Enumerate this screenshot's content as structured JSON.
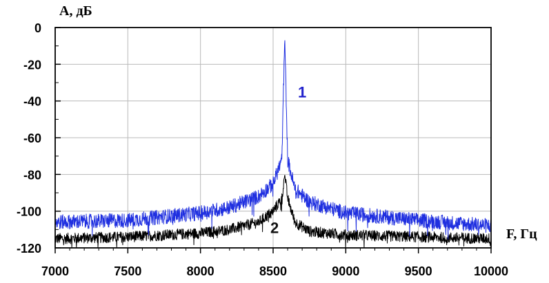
{
  "chart_data": {
    "type": "line",
    "xlabel": "F, Гц",
    "ylabel": "A, дБ",
    "xlim": [
      7000,
      10000
    ],
    "ylim": [
      -120,
      0
    ],
    "x_ticks": [
      7000,
      7500,
      8000,
      8500,
      9000,
      9500,
      10000
    ],
    "y_ticks": [
      0,
      -20,
      -40,
      -60,
      -80,
      -100,
      -120
    ],
    "x_tick_labels": [
      "7000",
      "7500",
      "8000",
      "8500",
      "9000",
      "9500",
      "10000"
    ],
    "y_tick_labels": [
      "0",
      "-20",
      "-40",
      "-60",
      "-80",
      "-100",
      "-120"
    ],
    "grid": true,
    "annotations": [
      {
        "text": "1",
        "x": 8700,
        "y": -38,
        "color": "#2222cc"
      },
      {
        "text": "2",
        "x": 8510,
        "y": -112,
        "color": "#111111"
      }
    ],
    "series": [
      {
        "label": "1",
        "color": "#1f2fe0",
        "x": [
          7000,
          7500,
          8000,
          8200,
          8400,
          8500,
          8560,
          8580,
          8600,
          8650,
          8750,
          9000,
          9500,
          10000
        ],
        "y": [
          -106,
          -105,
          -101,
          -98,
          -92,
          -85,
          -72,
          -5,
          -72,
          -88,
          -95,
          -101,
          -105,
          -108
        ],
        "noise": 4
      },
      {
        "label": "2",
        "color": "#000000",
        "x": [
          7000,
          7500,
          8000,
          8200,
          8400,
          8500,
          8560,
          8580,
          8600,
          8650,
          8750,
          9000,
          9500,
          10000
        ],
        "y": [
          -115,
          -114,
          -112,
          -110,
          -106,
          -100,
          -93,
          -80,
          -93,
          -106,
          -111,
          -113,
          -114,
          -115
        ],
        "noise": 3
      }
    ]
  }
}
